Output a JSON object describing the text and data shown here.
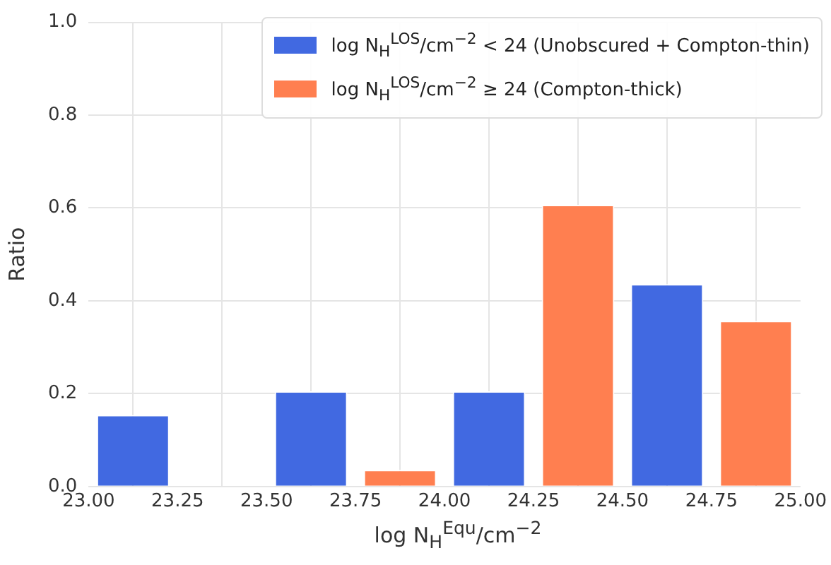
{
  "chart_data": {
    "type": "histogram",
    "xlabel": "log N$_{H}$$^{Equ}$/cm$^{−2}$",
    "ylabel": "Ratio",
    "bins": [
      23.0,
      23.5,
      24.0,
      24.5,
      25.0
    ],
    "series": [
      {
        "name": "log N$_{H}$$^{LOS}$/cm$^{−2}$ < 24 (Unobscured + Compton-thin)",
        "color": "#4169e1",
        "values": [
          0.154,
          0.205,
          0.205,
          0.436
        ]
      },
      {
        "name": "log N$_{H}$$^{LOS}$/cm$^{−2}$ ≥ 24 (Compton-thick)",
        "color": "#ff7f50",
        "values": [
          0.0,
          0.036,
          0.607,
          0.357
        ]
      }
    ],
    "xlim": [
      23.0,
      25.0
    ],
    "xticks": [
      {
        "value": 23.0,
        "label": "23.00"
      },
      {
        "value": 23.25,
        "label": "23.25"
      },
      {
        "value": 23.5,
        "label": "23.50"
      },
      {
        "value": 23.75,
        "label": "23.75"
      },
      {
        "value": 24.0,
        "label": "24.00"
      },
      {
        "value": 24.25,
        "label": "24.25"
      },
      {
        "value": 24.5,
        "label": "24.50"
      },
      {
        "value": 24.75,
        "label": "24.75"
      },
      {
        "value": 25.0,
        "label": "25.00"
      }
    ],
    "ylim": [
      0.0,
      1.0
    ],
    "yticks": [
      {
        "value": 0.0,
        "label": "0.0"
      },
      {
        "value": 0.2,
        "label": "0.2"
      },
      {
        "value": 0.4,
        "label": "0.4"
      },
      {
        "value": 0.6,
        "label": "0.6"
      },
      {
        "value": 0.8,
        "label": "0.8"
      },
      {
        "value": 1.0,
        "label": "1.0"
      }
    ],
    "grid": true,
    "legend": "top right"
  }
}
